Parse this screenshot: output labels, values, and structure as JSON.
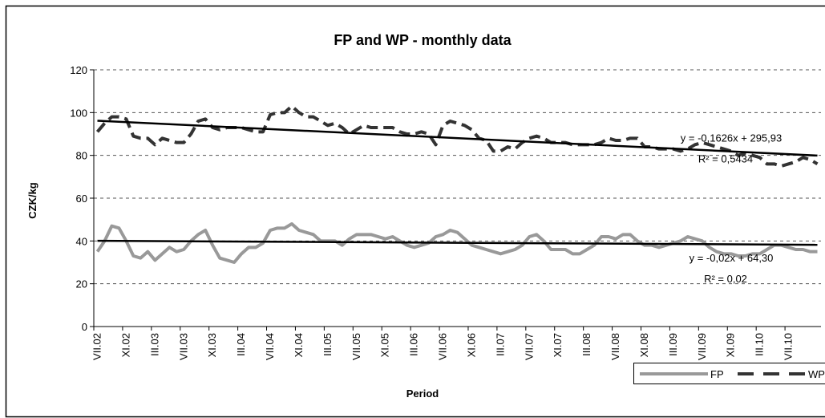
{
  "chart_data": {
    "type": "line",
    "title": "FP and WP - monthly data",
    "y_label": "CZK/kg",
    "x_label": "Period",
    "categories": [
      "VII.02",
      null,
      null,
      null,
      "XI.02",
      null,
      null,
      null,
      "III.03",
      null,
      null,
      null,
      "VII.03",
      null,
      null,
      null,
      "XI.03",
      null,
      null,
      null,
      "III.04",
      null,
      null,
      null,
      "VII.04",
      null,
      null,
      null,
      "XI.04",
      null,
      null,
      null,
      "III.05",
      null,
      null,
      null,
      "VII.05",
      null,
      null,
      null,
      "XI.05",
      null,
      null,
      null,
      "III.06",
      null,
      null,
      null,
      "VII.06",
      null,
      null,
      null,
      "XI.06",
      null,
      null,
      null,
      "III.07",
      null,
      null,
      null,
      "VII.07",
      null,
      null,
      null,
      "XI.07",
      null,
      null,
      null,
      "III.08",
      null,
      null,
      null,
      "VII.08",
      null,
      null,
      null,
      "XI.08",
      null,
      null,
      null,
      "III.09",
      null,
      null,
      null,
      "VII.09",
      null,
      null,
      null,
      "XI.09",
      null,
      null,
      null,
      "III.10",
      null,
      null,
      null,
      "VII.10",
      null,
      null,
      null,
      null
    ],
    "series": [
      {
        "name": "FP",
        "color": "#999999",
        "style": "solid",
        "values": [
          35,
          40,
          47,
          46,
          40,
          33,
          32,
          35,
          31,
          34,
          37,
          35,
          36,
          40,
          43,
          45,
          38,
          32,
          31,
          30,
          34,
          37,
          37,
          39,
          45,
          46,
          46,
          48,
          45,
          44,
          43,
          40,
          40,
          40,
          38,
          41,
          43,
          43,
          43,
          42,
          41,
          42,
          40,
          38,
          37,
          38,
          39,
          42,
          43,
          45,
          44,
          41,
          38,
          37,
          36,
          35,
          34,
          35,
          36,
          38,
          42,
          43,
          40,
          36,
          36,
          36,
          34,
          34,
          36,
          38,
          42,
          42,
          41,
          43,
          43,
          40,
          38,
          38,
          37,
          38,
          39,
          40,
          42,
          41,
          40,
          37,
          35,
          34,
          34,
          33,
          33,
          34,
          34,
          36,
          38,
          38,
          37,
          36,
          36,
          35,
          35
        ]
      },
      {
        "name": "WP",
        "color": "#333333",
        "style": "dashed",
        "values": [
          91,
          95,
          98,
          98,
          97,
          89,
          88,
          88,
          85,
          88,
          87,
          86,
          86,
          90,
          96,
          97,
          93,
          92,
          93,
          93,
          93,
          92,
          91,
          91,
          99,
          100,
          100,
          103,
          100,
          98,
          98,
          96,
          94,
          95,
          93,
          90,
          92,
          94,
          93,
          93,
          93,
          93,
          91,
          90,
          90,
          91,
          90,
          85,
          94,
          96,
          95,
          94,
          92,
          88,
          87,
          82,
          82,
          84,
          83,
          86,
          88,
          89,
          88,
          86,
          86,
          86,
          85,
          85,
          85,
          85,
          86,
          88,
          87,
          87,
          88,
          88,
          84,
          84,
          83,
          83,
          83,
          82,
          83,
          85,
          86,
          85,
          84,
          83,
          82,
          80,
          81,
          80,
          79,
          76,
          76,
          75,
          76,
          77,
          79,
          78,
          76
        ]
      }
    ],
    "trendlines": [
      {
        "series": "WP",
        "start": 96.2,
        "end": 79.9,
        "color": "#000000",
        "equation": "y = -0,1626x + 295,93",
        "r2": "R² = 0,5434"
      },
      {
        "series": "FP",
        "start": 40.1,
        "end": 38.2,
        "color": "#000000",
        "equation": "y = -0,02x + 64,30",
        "r2": "R² = 0,02"
      }
    ],
    "ylim": [
      0,
      120
    ],
    "yticks": [
      0,
      20,
      40,
      60,
      80,
      100,
      120
    ],
    "grid": true,
    "legend": "bottom-right"
  }
}
